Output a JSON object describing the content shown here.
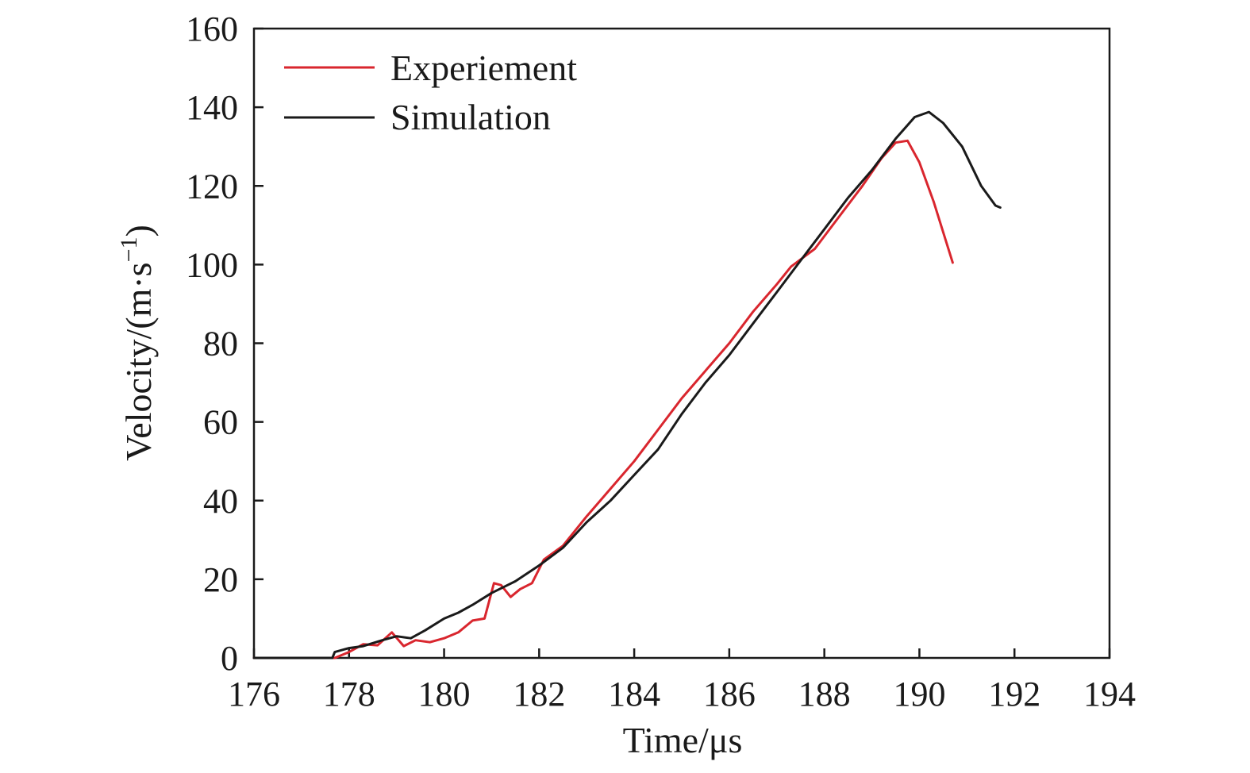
{
  "chart_data": {
    "type": "line",
    "title": "",
    "xlabel": "Time/μs",
    "ylabel_main": "Velocity/(m·s",
    "ylabel_sup": "−1",
    "ylabel_close": ")",
    "xlim": [
      176,
      194
    ],
    "ylim": [
      0,
      160
    ],
    "xticks": [
      "176",
      "178",
      "180",
      "182",
      "184",
      "186",
      "188",
      "190",
      "192",
      "194"
    ],
    "yticks": [
      "0",
      "20",
      "40",
      "60",
      "80",
      "100",
      "120",
      "140",
      "160"
    ],
    "grid": false,
    "legend_position": "top-left",
    "series": [
      {
        "name": "Experiement",
        "color": "#d9262e",
        "points": [
          [
            176.0,
            0
          ],
          [
            177.7,
            0
          ],
          [
            178.0,
            1.5
          ],
          [
            178.3,
            3.5
          ],
          [
            178.6,
            3.2
          ],
          [
            178.9,
            6.5
          ],
          [
            179.15,
            3.0
          ],
          [
            179.4,
            4.5
          ],
          [
            179.7,
            4.0
          ],
          [
            180.0,
            5.0
          ],
          [
            180.3,
            6.5
          ],
          [
            180.6,
            9.5
          ],
          [
            180.85,
            10.0
          ],
          [
            181.05,
            19.0
          ],
          [
            181.2,
            18.5
          ],
          [
            181.4,
            15.5
          ],
          [
            181.6,
            17.5
          ],
          [
            181.85,
            19.0
          ],
          [
            182.1,
            25.0
          ],
          [
            182.5,
            28.5
          ],
          [
            183.0,
            36.0
          ],
          [
            183.5,
            43.0
          ],
          [
            184.0,
            50.0
          ],
          [
            184.5,
            58.0
          ],
          [
            185.0,
            66.0
          ],
          [
            185.5,
            73.0
          ],
          [
            186.0,
            80.0
          ],
          [
            186.5,
            88.0
          ],
          [
            187.0,
            95.0
          ],
          [
            187.3,
            99.5
          ],
          [
            187.8,
            104.0
          ],
          [
            188.3,
            112.0
          ],
          [
            188.8,
            120.0
          ],
          [
            189.2,
            127.0
          ],
          [
            189.5,
            131.0
          ],
          [
            189.75,
            131.5
          ],
          [
            190.0,
            126.0
          ],
          [
            190.3,
            116.0
          ],
          [
            190.7,
            100.5
          ]
        ]
      },
      {
        "name": "Simulation",
        "color": "#1a1a1a",
        "points": [
          [
            176.0,
            0
          ],
          [
            177.65,
            0
          ],
          [
            177.7,
            1.5
          ],
          [
            178.0,
            2.5
          ],
          [
            178.3,
            3.0
          ],
          [
            178.7,
            4.5
          ],
          [
            179.0,
            5.5
          ],
          [
            179.3,
            5.0
          ],
          [
            179.6,
            7.0
          ],
          [
            180.0,
            10.0
          ],
          [
            180.3,
            11.5
          ],
          [
            180.6,
            13.5
          ],
          [
            181.0,
            16.5
          ],
          [
            181.5,
            19.5
          ],
          [
            182.0,
            23.5
          ],
          [
            182.5,
            28.0
          ],
          [
            183.0,
            34.5
          ],
          [
            183.5,
            40.0
          ],
          [
            184.0,
            46.5
          ],
          [
            184.5,
            53.0
          ],
          [
            185.0,
            62.0
          ],
          [
            185.5,
            70.0
          ],
          [
            186.0,
            77.0
          ],
          [
            186.5,
            85.0
          ],
          [
            187.0,
            93.0
          ],
          [
            187.5,
            101.0
          ],
          [
            188.0,
            109.0
          ],
          [
            188.5,
            117.0
          ],
          [
            189.0,
            124.0
          ],
          [
            189.5,
            132.0
          ],
          [
            189.9,
            137.5
          ],
          [
            190.2,
            138.8
          ],
          [
            190.5,
            136.0
          ],
          [
            190.9,
            130.0
          ],
          [
            191.3,
            120.0
          ],
          [
            191.6,
            115.0
          ],
          [
            191.7,
            114.5
          ]
        ]
      }
    ]
  }
}
